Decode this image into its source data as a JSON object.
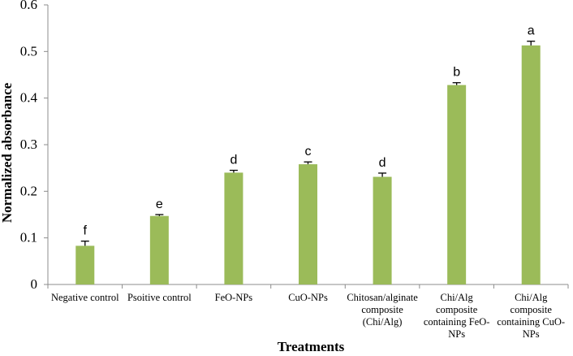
{
  "chart_data": {
    "type": "bar",
    "title": "",
    "xlabel": "Treatments",
    "ylabel": "Normalized absorbance",
    "ylim": [
      0,
      0.6
    ],
    "yticks": [
      "0",
      "0.1",
      "0.2",
      "0.3",
      "0.4",
      "0.5",
      "0.6"
    ],
    "grid": false,
    "bar_color": "#9bbb59",
    "categories": [
      [
        "Negative control"
      ],
      [
        "Psoitive control"
      ],
      [
        "FeO-NPs"
      ],
      [
        "CuO-NPs"
      ],
      [
        "Chitosan/alginate",
        "composite",
        "(Chi/Alg)"
      ],
      [
        "Chi/Alg",
        "composite",
        "containing FeO-",
        "NPs"
      ],
      [
        "Chi/Alg",
        "composite",
        "containing CuO-",
        "NPs"
      ]
    ],
    "values": [
      0.083,
      0.147,
      0.24,
      0.258,
      0.231,
      0.428,
      0.513
    ],
    "errors": [
      0.01,
      0.003,
      0.005,
      0.005,
      0.008,
      0.005,
      0.009
    ],
    "significance_letters": [
      "f",
      "e",
      "d",
      "c",
      "d",
      "b",
      "a"
    ]
  }
}
